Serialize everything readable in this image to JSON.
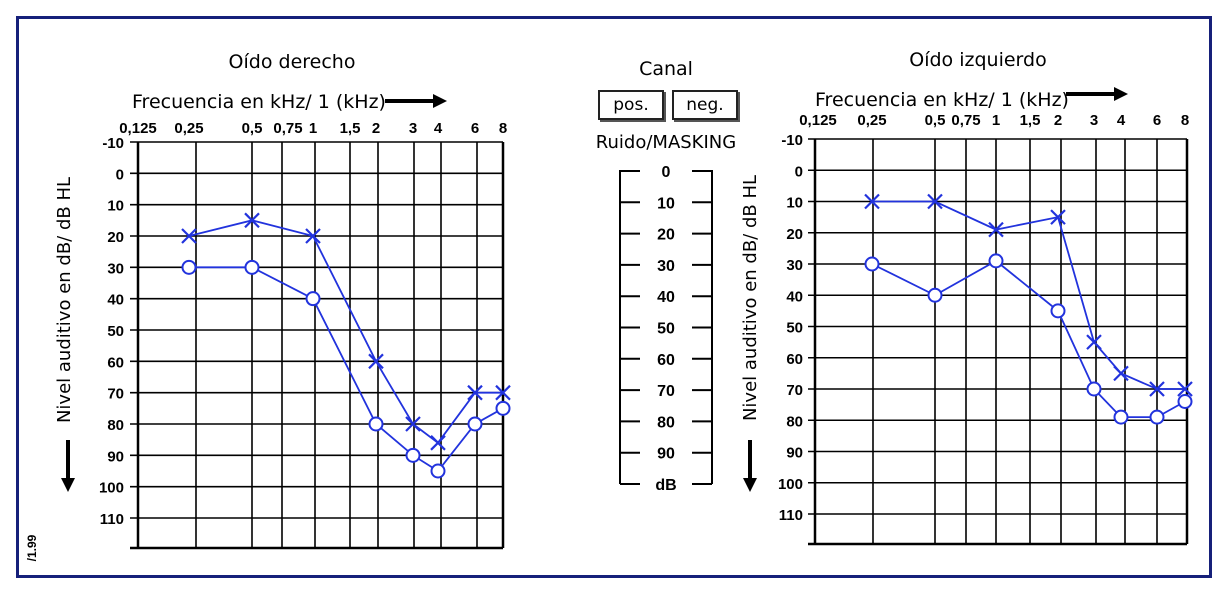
{
  "canal": {
    "title": "Canal",
    "pos_label": "pos.",
    "neg_label": "neg.",
    "masking_label": "Ruido/MASKING"
  },
  "masking_scale": {
    "labels": [
      "0",
      "10",
      "20",
      "30",
      "40",
      "50",
      "60",
      "70",
      "80",
      "90",
      "dB"
    ]
  },
  "side_code": "/1.99",
  "colors": {
    "line": "#2233dd",
    "grid": "#000000",
    "frame": "#16207a"
  },
  "chart_data": [
    {
      "type": "line",
      "title": "Oído derecho",
      "xlabel": "Frecuencia en kHz/ 1 (kHz)",
      "ylabel": "Nivel auditivo en dB/ dB HL",
      "x_tick_labels": [
        "0,125",
        "0,25",
        "0,5",
        "0,75",
        "1",
        "1,5",
        "2",
        "3",
        "4",
        "6",
        "8"
      ],
      "y_tick_labels": [
        "-10",
        "0",
        "10",
        "20",
        "30",
        "40",
        "50",
        "60",
        "70",
        "80",
        "90",
        "100",
        "110"
      ],
      "ylim": [
        -10,
        120
      ],
      "y_inverted": true,
      "grid": true,
      "series": [
        {
          "marker": "x",
          "x": [
            0.25,
            0.5,
            1,
            2,
            3,
            4,
            6,
            8
          ],
          "y": [
            20,
            15,
            20,
            60,
            80,
            86,
            70,
            70
          ]
        },
        {
          "marker": "o",
          "x": [
            0.25,
            0.5,
            1,
            2,
            3,
            4,
            6,
            8
          ],
          "y": [
            30,
            30,
            40,
            80,
            90,
            95,
            80,
            75
          ]
        }
      ]
    },
    {
      "type": "line",
      "title": "Oído izquierdo",
      "xlabel": "Frecuencia en kHz/ 1 (kHz)",
      "ylabel": "Nivel auditivo en dB/ dB HL",
      "x_tick_labels": [
        "0,125",
        "0,25",
        "0,5",
        "0,75",
        "1",
        "1,5",
        "2",
        "3",
        "4",
        "6",
        "8"
      ],
      "y_tick_labels": [
        "-10",
        "0",
        "10",
        "20",
        "30",
        "40",
        "50",
        "60",
        "70",
        "80",
        "90",
        "100",
        "110"
      ],
      "ylim": [
        -10,
        120
      ],
      "y_inverted": true,
      "grid": true,
      "series": [
        {
          "marker": "x",
          "x": [
            0.25,
            0.5,
            1,
            2,
            3,
            4,
            6,
            8
          ],
          "y": [
            10,
            10,
            19,
            15,
            55,
            65,
            70,
            70
          ]
        },
        {
          "marker": "o",
          "x": [
            0.25,
            0.5,
            1,
            2,
            3,
            4,
            6,
            8
          ],
          "y": [
            30,
            40,
            29,
            45,
            70,
            79,
            79,
            74
          ]
        }
      ]
    }
  ]
}
